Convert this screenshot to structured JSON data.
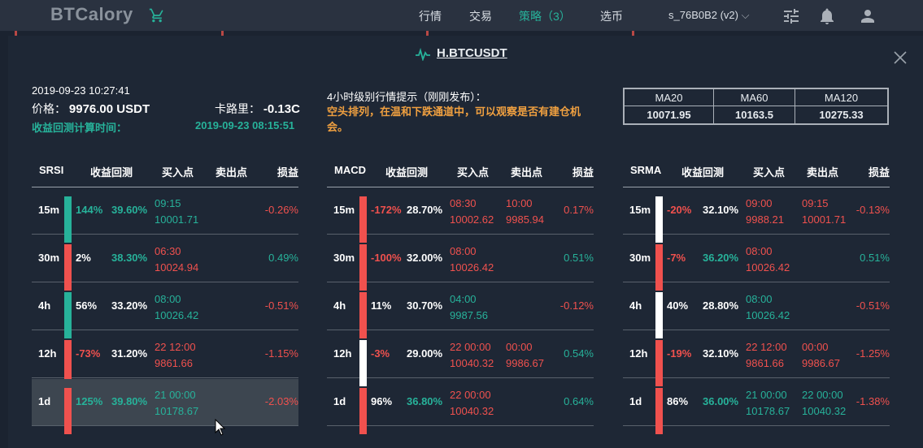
{
  "app": {
    "logo": "BTCalory",
    "nav": [
      "行情",
      "交易",
      "策略（3）",
      "选币"
    ],
    "user": "s_76B0B2 (v2)"
  },
  "modal": {
    "title": "H.BTCUSDT",
    "datetime": "2019-09-23 10:27:41",
    "price_label": "价格：",
    "price_value": "9976.00 USDT",
    "kalu_label": "卡路里：",
    "kalu_value": "-0.13C",
    "backtest_label": "收益回测计算时间：",
    "backtest_time": "2019-09-23 08:15:51",
    "hint_title": "4小时级别行情提示（刚刚发布）：",
    "hint_text": "空头排列，在温和下跌通道中，可以观察是否有建仓机会。",
    "ma": {
      "headers": [
        "MA20",
        "MA60",
        "MA120"
      ],
      "values": [
        "10071.95",
        "10163.5",
        "10275.33"
      ]
    }
  },
  "colors": {
    "green": "#27b29a",
    "red": "#f0514e",
    "white": "#ffffff"
  },
  "tables": [
    {
      "name": "SRSI",
      "headers": [
        "SRSI",
        "收益回测",
        "买入点",
        "卖出点",
        "损益"
      ],
      "rows": [
        {
          "tf": "15m",
          "bar": "green",
          "pct": "144%",
          "pct_c": "green",
          "bt": "39.60%",
          "bt_c": "green",
          "buy_t": "09:15",
          "buy_p": "10001.71",
          "buy_c": "green",
          "sell_t": "",
          "sell_p": "",
          "sell_c": "red",
          "pl": "-0.26%",
          "pl_c": "red"
        },
        {
          "tf": "30m",
          "bar": "red",
          "pct": "2%",
          "pct_c": "white",
          "bt": "38.30%",
          "bt_c": "green",
          "buy_t": "06:30",
          "buy_p": "10024.94",
          "buy_c": "red",
          "sell_t": "",
          "sell_p": "",
          "sell_c": "red",
          "pl": "0.49%",
          "pl_c": "green"
        },
        {
          "tf": "4h",
          "bar": "green",
          "pct": "56%",
          "pct_c": "white",
          "bt": "33.20%",
          "bt_c": "white",
          "buy_t": "08:00",
          "buy_p": "10026.42",
          "buy_c": "green",
          "sell_t": "",
          "sell_p": "",
          "sell_c": "red",
          "pl": "-0.51%",
          "pl_c": "red"
        },
        {
          "tf": "12h",
          "bar": "red",
          "pct": "-73%",
          "pct_c": "red",
          "bt": "31.20%",
          "bt_c": "white",
          "buy_t": "22 12:00",
          "buy_p": "9861.66",
          "buy_c": "red",
          "sell_t": "",
          "sell_p": "",
          "sell_c": "red",
          "pl": "-1.15%",
          "pl_c": "red"
        },
        {
          "tf": "1d",
          "bar": "red",
          "pct": "125%",
          "pct_c": "green",
          "bt": "39.80%",
          "bt_c": "green",
          "buy_t": "21 00:00",
          "buy_p": "10178.67",
          "buy_c": "green",
          "sell_t": "",
          "sell_p": "",
          "sell_c": "red",
          "pl": "-2.03%",
          "pl_c": "red",
          "hl": true
        }
      ]
    },
    {
      "name": "MACD",
      "headers": [
        "MACD",
        "收益回测",
        "买入点",
        "卖出点",
        "损益"
      ],
      "rows": [
        {
          "tf": "15m",
          "bar": "red",
          "pct": "-172%",
          "pct_c": "red",
          "bt": "28.70%",
          "bt_c": "white",
          "buy_t": "08:30",
          "buy_p": "10002.62",
          "buy_c": "red",
          "sell_t": "10:00",
          "sell_p": "9985.94",
          "sell_c": "red",
          "pl": "0.17%",
          "pl_c": "red"
        },
        {
          "tf": "30m",
          "bar": "red",
          "pct": "-100%",
          "pct_c": "red",
          "bt": "32.00%",
          "bt_c": "white",
          "buy_t": "08:00",
          "buy_p": "10026.42",
          "buy_c": "red",
          "sell_t": "",
          "sell_p": "",
          "sell_c": "red",
          "pl": "0.51%",
          "pl_c": "green"
        },
        {
          "tf": "4h",
          "bar": "red",
          "pct": "11%",
          "pct_c": "white",
          "bt": "30.70%",
          "bt_c": "white",
          "buy_t": "04:00",
          "buy_p": "9987.56",
          "buy_c": "green",
          "sell_t": "",
          "sell_p": "",
          "sell_c": "red",
          "pl": "-0.12%",
          "pl_c": "red"
        },
        {
          "tf": "12h",
          "bar": "white",
          "pct": "-3%",
          "pct_c": "red",
          "bt": "29.00%",
          "bt_c": "white",
          "buy_t": "22 00:00",
          "buy_p": "10040.32",
          "buy_c": "red",
          "sell_t": "00:00",
          "sell_p": "9986.67",
          "sell_c": "red",
          "pl": "0.54%",
          "pl_c": "green"
        },
        {
          "tf": "1d",
          "bar": "red",
          "pct": "96%",
          "pct_c": "white",
          "bt": "36.80%",
          "bt_c": "green",
          "buy_t": "22 00:00",
          "buy_p": "10040.32",
          "buy_c": "red",
          "sell_t": "",
          "sell_p": "",
          "sell_c": "red",
          "pl": "0.64%",
          "pl_c": "green"
        }
      ]
    },
    {
      "name": "SRMA",
      "headers": [
        "SRMA",
        "收益回测",
        "买入点",
        "卖出点",
        "损益"
      ],
      "rows": [
        {
          "tf": "15m",
          "bar": "white",
          "pct": "-20%",
          "pct_c": "red",
          "bt": "32.10%",
          "bt_c": "white",
          "buy_t": "09:00",
          "buy_p": "9988.21",
          "buy_c": "red",
          "sell_t": "09:15",
          "sell_p": "10001.71",
          "sell_c": "red",
          "pl": "-0.13%",
          "pl_c": "red"
        },
        {
          "tf": "30m",
          "bar": "red",
          "pct": "-7%",
          "pct_c": "red",
          "bt": "36.20%",
          "bt_c": "green",
          "buy_t": "08:00",
          "buy_p": "10026.42",
          "buy_c": "red",
          "sell_t": "",
          "sell_p": "",
          "sell_c": "red",
          "pl": "0.51%",
          "pl_c": "green"
        },
        {
          "tf": "4h",
          "bar": "white",
          "pct": "40%",
          "pct_c": "white",
          "bt": "28.80%",
          "bt_c": "white",
          "buy_t": "08:00",
          "buy_p": "10026.42",
          "buy_c": "green",
          "sell_t": "",
          "sell_p": "",
          "sell_c": "red",
          "pl": "-0.51%",
          "pl_c": "red"
        },
        {
          "tf": "12h",
          "bar": "red",
          "pct": "-19%",
          "pct_c": "red",
          "bt": "32.10%",
          "bt_c": "white",
          "buy_t": "22 12:00",
          "buy_p": "9861.66",
          "buy_c": "red",
          "sell_t": "00:00",
          "sell_p": "9986.67",
          "sell_c": "red",
          "pl": "-1.25%",
          "pl_c": "red"
        },
        {
          "tf": "1d",
          "bar": "red",
          "pct": "86%",
          "pct_c": "white",
          "bt": "36.00%",
          "bt_c": "green",
          "buy_t": "21 00:00",
          "buy_p": "10178.67",
          "buy_c": "green",
          "sell_t": "22 00:00",
          "sell_p": "10040.32",
          "sell_c": "green",
          "pl": "-1.38%",
          "pl_c": "red"
        }
      ]
    }
  ]
}
